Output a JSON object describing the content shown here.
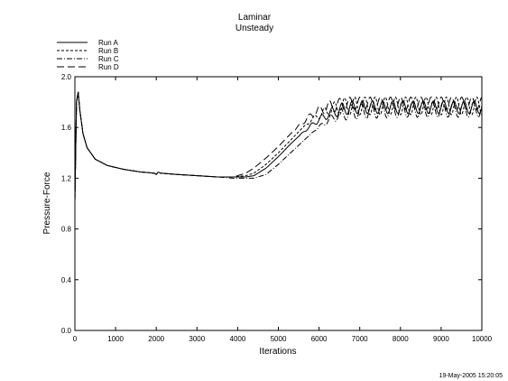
{
  "chart_data": {
    "type": "line",
    "title": "Laminar",
    "subtitle": "Unsteady",
    "xlabel": "Iterations",
    "ylabel": "Pressure-Force",
    "xlim": [
      0,
      10000
    ],
    "ylim": [
      0.0,
      2.0
    ],
    "x_ticks": [
      "0",
      "1000",
      "2000",
      "3000",
      "4000",
      "5000",
      "6000",
      "7000",
      "8000",
      "9000",
      "10000"
    ],
    "y_ticks": [
      "0.0",
      "0.4",
      "0.8",
      "1.2",
      "1.6",
      "2.0"
    ],
    "grid": false,
    "legend_position": "top-left, above plot",
    "timestamp": "19-May-2005 15:20:05",
    "series": [
      {
        "name": "Run A",
        "line_style": "solid",
        "x": [
          0,
          40,
          80,
          120,
          200,
          300,
          500,
          800,
          1200,
          1600,
          1950,
          2000,
          2050,
          2100,
          2500,
          3000,
          3500,
          3900,
          4200,
          4400,
          4700,
          5000,
          5300,
          5600,
          5900,
          6200,
          6500,
          6800,
          7200,
          8000,
          9000,
          10000
        ],
        "y": [
          1.02,
          1.8,
          1.88,
          1.74,
          1.55,
          1.44,
          1.35,
          1.3,
          1.27,
          1.25,
          1.24,
          1.23,
          1.25,
          1.24,
          1.23,
          1.22,
          1.21,
          1.21,
          1.21,
          1.22,
          1.28,
          1.37,
          1.47,
          1.56,
          1.64,
          1.7,
          1.74,
          1.76,
          1.76,
          1.76,
          1.76,
          1.76
        ],
        "amplitude": 0.05,
        "osc_start": 5500,
        "period": 250
      },
      {
        "name": "Run B",
        "line_style": "dashed",
        "x": [
          0,
          40,
          80,
          120,
          200,
          300,
          500,
          800,
          1200,
          1600,
          1950,
          2000,
          2050,
          2100,
          2500,
          3000,
          3500,
          3900,
          4200,
          4400,
          4700,
          5000,
          5300,
          5600,
          5900,
          6200,
          6500,
          6800,
          7200,
          8000,
          9000,
          10000
        ],
        "y": [
          1.02,
          1.8,
          1.88,
          1.74,
          1.55,
          1.44,
          1.35,
          1.3,
          1.27,
          1.25,
          1.24,
          1.23,
          1.25,
          1.24,
          1.23,
          1.22,
          1.21,
          1.21,
          1.22,
          1.24,
          1.31,
          1.4,
          1.5,
          1.6,
          1.68,
          1.73,
          1.76,
          1.77,
          1.77,
          1.77,
          1.77,
          1.77
        ],
        "amplitude": 0.07,
        "osc_start": 5600,
        "period": 250
      },
      {
        "name": "Run C",
        "line_style": "dash-dot",
        "x": [
          0,
          40,
          80,
          120,
          200,
          300,
          500,
          800,
          1200,
          1600,
          1950,
          2000,
          2050,
          2100,
          2500,
          3000,
          3500,
          3900,
          4200,
          4400,
          4700,
          5000,
          5300,
          5600,
          5900,
          6200,
          6500,
          6800,
          7200,
          8000,
          9000,
          10000
        ],
        "y": [
          1.02,
          1.8,
          1.88,
          1.74,
          1.55,
          1.44,
          1.35,
          1.3,
          1.27,
          1.25,
          1.24,
          1.23,
          1.25,
          1.24,
          1.23,
          1.22,
          1.21,
          1.2,
          1.2,
          1.2,
          1.23,
          1.31,
          1.4,
          1.49,
          1.58,
          1.65,
          1.7,
          1.72,
          1.73,
          1.74,
          1.74,
          1.74
        ],
        "amplitude": 0.06,
        "osc_start": 5800,
        "period": 250
      },
      {
        "name": "Run D",
        "line_style": "long-dash",
        "x": [
          0,
          40,
          80,
          120,
          200,
          300,
          500,
          800,
          1200,
          1600,
          1950,
          2000,
          2050,
          2100,
          2500,
          3000,
          3500,
          3900,
          4200,
          4400,
          4700,
          5000,
          5300,
          5600,
          5900,
          6200,
          6500,
          6800,
          7200,
          8000,
          9000,
          10000
        ],
        "y": [
          1.02,
          1.8,
          1.88,
          1.74,
          1.55,
          1.44,
          1.35,
          1.3,
          1.27,
          1.25,
          1.24,
          1.23,
          1.25,
          1.24,
          1.23,
          1.22,
          1.21,
          1.21,
          1.24,
          1.28,
          1.36,
          1.45,
          1.55,
          1.64,
          1.72,
          1.76,
          1.78,
          1.79,
          1.79,
          1.79,
          1.79,
          1.79
        ],
        "amplitude": 0.05,
        "osc_start": 5300,
        "period": 250
      }
    ]
  }
}
